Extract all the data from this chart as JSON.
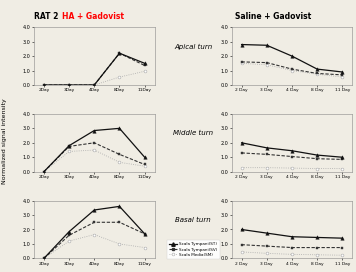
{
  "title_left_prefix": "RAT 2",
  "title_left": "HA + Gadovist",
  "title_right": "Saline + Gadovist",
  "ylabel": "Normalized signal intensity",
  "xticklabels_left": [
    "2Day",
    "3Day",
    "4Day",
    "8Day",
    "11Day"
  ],
  "xticklabels_right": [
    "2 Day",
    "3 Day",
    "4 Day",
    "8 Day",
    "11 Day"
  ],
  "subtitles": [
    "Apical turn",
    "Middle turn",
    "Basal turn"
  ],
  "ylim": [
    0.0,
    4.0
  ],
  "yticks": [
    0.0,
    1.0,
    2.0,
    3.0,
    4.0
  ],
  "left_apical": {
    "st": [
      0.0,
      0.0,
      0.0,
      2.2,
      1.5
    ],
    "sv": [
      0.0,
      0.0,
      0.0,
      2.2,
      1.35
    ],
    "sm": [
      0.0,
      0.0,
      0.0,
      0.55,
      0.95
    ]
  },
  "left_middle": {
    "st": [
      0.0,
      1.8,
      2.85,
      3.0,
      1.0
    ],
    "sv": [
      0.0,
      1.75,
      2.0,
      1.2,
      0.5
    ],
    "sm": [
      0.0,
      1.4,
      1.5,
      0.65,
      0.38
    ]
  },
  "left_basal": {
    "st": [
      0.0,
      1.85,
      3.35,
      3.6,
      1.7
    ],
    "sv": [
      0.0,
      1.6,
      2.5,
      2.5,
      1.7
    ],
    "sm": [
      0.0,
      1.2,
      1.65,
      1.0,
      0.75
    ]
  },
  "right_apical": {
    "st": [
      2.8,
      2.75,
      2.0,
      1.1,
      0.9
    ],
    "sv": [
      1.6,
      1.55,
      1.1,
      0.8,
      0.7
    ],
    "sm": [
      1.5,
      1.4,
      1.0,
      0.75,
      0.55
    ]
  },
  "right_middle": {
    "st": [
      2.0,
      1.65,
      1.45,
      1.15,
      1.0
    ],
    "sv": [
      1.3,
      1.2,
      1.05,
      0.9,
      0.85
    ],
    "sm": [
      0.28,
      0.28,
      0.25,
      0.22,
      0.22
    ]
  },
  "right_basal": {
    "st": [
      2.0,
      1.75,
      1.5,
      1.45,
      1.4
    ],
    "sv": [
      0.95,
      0.85,
      0.75,
      0.75,
      0.75
    ],
    "sm": [
      0.45,
      0.35,
      0.28,
      0.25,
      0.22
    ]
  },
  "color_st": "#111111",
  "color_sv": "#333333",
  "color_sm": "#aaaaaa",
  "bg_color": "#f0ede4"
}
